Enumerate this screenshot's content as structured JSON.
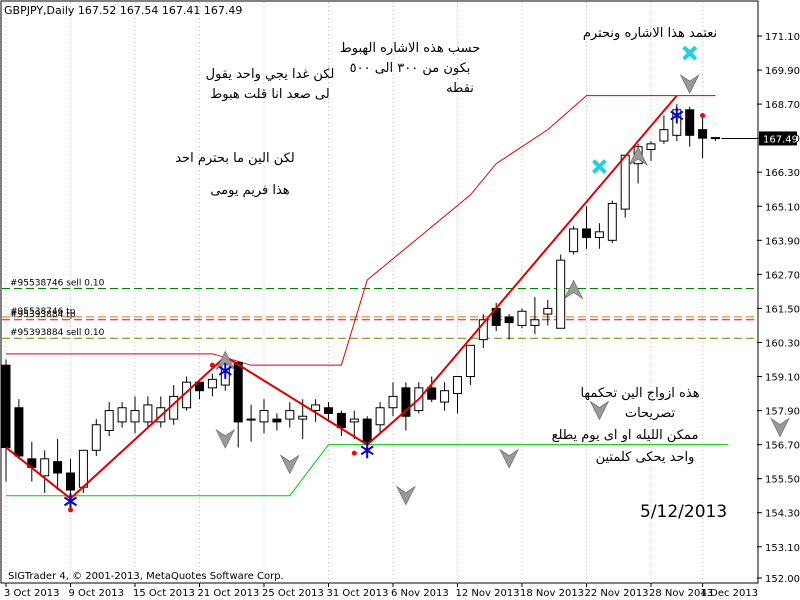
{
  "header": {
    "symbol_line": "GBPJPY,Daily  167.52 167.54 167.41 167.49",
    "copyright": "SIGTrader 4, © 2001-2013, MetaQuotes Software Corp.",
    "current_price": "167.49"
  },
  "chart_data": {
    "type": "candlestick",
    "ylim": [
      152.0,
      172.0
    ],
    "y_ticks": [
      "171.10",
      "169.90",
      "168.70",
      "167.50",
      "166.30",
      "165.10",
      "163.90",
      "162.70",
      "161.50",
      "160.30",
      "159.10",
      "157.90",
      "156.70",
      "155.50",
      "154.30",
      "153.10",
      "152.00"
    ],
    "x_ticks": [
      "3 Oct 2013",
      "9 Oct 2013",
      "15 Oct 2013",
      "21 Oct 2013",
      "25 Oct 2013",
      "31 Oct 2013",
      "6 Nov 2013",
      "12 Nov 2013",
      "18 Nov 2013",
      "22 Nov 2013",
      "28 Nov 2013",
      "4 Dec 2013"
    ],
    "candles": [
      {
        "o": 159.5,
        "h": 159.7,
        "l": 155.4,
        "c": 156.6
      },
      {
        "o": 158.0,
        "h": 158.3,
        "l": 156.2,
        "c": 156.3
      },
      {
        "o": 156.2,
        "h": 156.8,
        "l": 155.4,
        "c": 155.9
      },
      {
        "o": 155.6,
        "h": 156.5,
        "l": 155.0,
        "c": 156.2
      },
      {
        "o": 156.1,
        "h": 156.9,
        "l": 155.1,
        "c": 155.7
      },
      {
        "o": 155.7,
        "h": 156.2,
        "l": 154.8,
        "c": 155.1
      },
      {
        "o": 155.2,
        "h": 156.5,
        "l": 155.0,
        "c": 156.5
      },
      {
        "o": 156.5,
        "h": 157.6,
        "l": 156.3,
        "c": 157.4
      },
      {
        "o": 157.2,
        "h": 158.2,
        "l": 157.0,
        "c": 157.9
      },
      {
        "o": 157.5,
        "h": 158.2,
        "l": 157.3,
        "c": 158.0
      },
      {
        "o": 157.5,
        "h": 158.4,
        "l": 157.1,
        "c": 157.9
      },
      {
        "o": 157.5,
        "h": 158.4,
        "l": 157.3,
        "c": 158.1
      },
      {
        "o": 157.5,
        "h": 158.4,
        "l": 157.3,
        "c": 158.0
      },
      {
        "o": 157.6,
        "h": 158.8,
        "l": 157.4,
        "c": 158.4
      },
      {
        "o": 158.0,
        "h": 159.1,
        "l": 157.9,
        "c": 158.9
      },
      {
        "o": 158.9,
        "h": 158.9,
        "l": 158.3,
        "c": 158.6
      },
      {
        "o": 158.7,
        "h": 159.2,
        "l": 158.4,
        "c": 159.0
      },
      {
        "o": 158.8,
        "h": 159.8,
        "l": 158.6,
        "c": 159.6
      },
      {
        "o": 159.6,
        "h": 159.6,
        "l": 156.6,
        "c": 157.5
      },
      {
        "o": 157.6,
        "h": 158.1,
        "l": 156.8,
        "c": 157.6
      },
      {
        "o": 157.5,
        "h": 158.3,
        "l": 157.1,
        "c": 157.9
      },
      {
        "o": 157.6,
        "h": 157.8,
        "l": 157.2,
        "c": 157.5
      },
      {
        "o": 157.6,
        "h": 158.2,
        "l": 157.3,
        "c": 157.9
      },
      {
        "o": 157.6,
        "h": 158.3,
        "l": 156.9,
        "c": 157.7
      },
      {
        "o": 157.9,
        "h": 158.3,
        "l": 157.5,
        "c": 158.1
      },
      {
        "o": 158.0,
        "h": 158.2,
        "l": 157.5,
        "c": 157.8
      },
      {
        "o": 157.8,
        "h": 157.9,
        "l": 157.0,
        "c": 157.3
      },
      {
        "o": 157.5,
        "h": 157.9,
        "l": 156.9,
        "c": 157.6
      },
      {
        "o": 157.6,
        "h": 157.7,
        "l": 156.4,
        "c": 156.8
      },
      {
        "o": 157.4,
        "h": 158.2,
        "l": 157.1,
        "c": 158.0
      },
      {
        "o": 158.0,
        "h": 158.9,
        "l": 157.7,
        "c": 158.4
      },
      {
        "o": 158.7,
        "h": 158.9,
        "l": 157.2,
        "c": 157.7
      },
      {
        "o": 157.9,
        "h": 158.9,
        "l": 157.8,
        "c": 158.7
      },
      {
        "o": 158.7,
        "h": 159.1,
        "l": 158.2,
        "c": 158.3
      },
      {
        "o": 158.2,
        "h": 158.9,
        "l": 157.9,
        "c": 158.6
      },
      {
        "o": 158.5,
        "h": 159.1,
        "l": 157.8,
        "c": 159.1
      },
      {
        "o": 159.1,
        "h": 160.2,
        "l": 158.8,
        "c": 160.2
      },
      {
        "o": 160.4,
        "h": 161.3,
        "l": 160.1,
        "c": 161.1
      },
      {
        "o": 161.5,
        "h": 161.7,
        "l": 160.7,
        "c": 160.9
      },
      {
        "o": 161.2,
        "h": 161.3,
        "l": 160.4,
        "c": 161.0
      },
      {
        "o": 160.9,
        "h": 161.5,
        "l": 160.8,
        "c": 161.4
      },
      {
        "o": 160.9,
        "h": 161.9,
        "l": 160.6,
        "c": 161.1
      },
      {
        "o": 161.3,
        "h": 161.8,
        "l": 160.9,
        "c": 161.5
      },
      {
        "o": 160.8,
        "h": 163.4,
        "l": 160.8,
        "c": 163.2
      },
      {
        "o": 163.5,
        "h": 164.4,
        "l": 163.4,
        "c": 164.3
      },
      {
        "o": 164.3,
        "h": 165.1,
        "l": 163.6,
        "c": 164.0
      },
      {
        "o": 164.0,
        "h": 164.5,
        "l": 163.6,
        "c": 164.2
      },
      {
        "o": 163.9,
        "h": 165.3,
        "l": 163.8,
        "c": 165.2
      },
      {
        "o": 165.0,
        "h": 166.9,
        "l": 164.7,
        "c": 166.9
      },
      {
        "o": 166.6,
        "h": 167.3,
        "l": 165.9,
        "c": 167.2
      },
      {
        "o": 167.1,
        "h": 167.4,
        "l": 166.7,
        "c": 167.3
      },
      {
        "o": 167.4,
        "h": 168.3,
        "l": 167.3,
        "c": 167.8
      },
      {
        "o": 167.6,
        "h": 168.7,
        "l": 167.4,
        "c": 168.5
      },
      {
        "o": 168.5,
        "h": 168.6,
        "l": 167.2,
        "c": 167.6
      },
      {
        "o": 167.8,
        "h": 168.3,
        "l": 166.8,
        "c": 167.5
      },
      {
        "o": 167.52,
        "h": 167.54,
        "l": 167.41,
        "c": 167.49
      }
    ],
    "trend_line_points": [
      [
        0,
        156.6
      ],
      [
        5,
        154.8
      ],
      [
        17,
        159.8
      ],
      [
        28,
        156.7
      ],
      [
        32,
        158.3
      ],
      [
        52,
        169.0
      ]
    ],
    "upper_band_red": [
      [
        0,
        159.9
      ],
      [
        16,
        159.9
      ],
      [
        19,
        159.5
      ],
      [
        26,
        159.5
      ],
      [
        28,
        162.5
      ],
      [
        32,
        164.0
      ],
      [
        36,
        165.5
      ],
      [
        38,
        166.6
      ],
      [
        42,
        167.8
      ],
      [
        45,
        169.0
      ],
      [
        55,
        169.0
      ]
    ],
    "lower_band_green": [
      [
        0,
        154.9
      ],
      [
        22,
        154.9
      ],
      [
        25,
        156.7
      ],
      [
        56,
        156.7
      ]
    ],
    "horizontal_orders": [
      {
        "label": "#95538746 sell 0.10",
        "price": 162.2,
        "color": "#008000"
      },
      {
        "label": "#95538746 tp",
        "price": 161.2,
        "color": "#ff6600"
      },
      {
        "label": "#95393884 tp",
        "price": 161.1,
        "color": "#ff0000"
      },
      {
        "label": "#95393884 sell 0.10",
        "price": 160.45,
        "color": "#808000"
      }
    ],
    "arrow_up_markers": [
      [
        17,
        159.0
      ],
      [
        44,
        161.5
      ],
      [
        49,
        166.2
      ]
    ],
    "arrow_down_markers": [
      [
        17,
        157.5
      ],
      [
        22,
        156.6
      ],
      [
        31,
        155.5
      ],
      [
        53,
        170.0
      ],
      [
        39,
        156.8
      ],
      [
        46,
        158.5
      ],
      [
        60,
        157.9
      ]
    ],
    "blue_markers": [
      [
        5,
        154.7
      ],
      [
        17,
        159.3
      ],
      [
        28,
        156.5
      ],
      [
        52,
        168.3
      ]
    ],
    "red_dots": [
      [
        5,
        154.4
      ],
      [
        16,
        159.5
      ],
      [
        27,
        156.4
      ],
      [
        54,
        168.3
      ]
    ],
    "cyan_x": [
      [
        46,
        166.5
      ],
      [
        53,
        170.5
      ]
    ]
  },
  "annotations": {
    "text_1_line1": "لكن غدا يجي واحد يقول",
    "text_1_line2": "لى صعد انا قلت هبوط",
    "text_2": "لكن الين ما بحترم احد",
    "text_3": "هذا فريم يومى",
    "text_4_line1": "حسب هذه الاشاره الهبوط",
    "text_4_line2": "بكون من ٣٠٠ الى ٥٠٠",
    "text_4_line3": "نقطه",
    "text_5": "نعتمد هذا الاشاره ونحترم",
    "text_6_line1": "هذه ازواج الين تحكمها",
    "text_6_line2": "تصريحات",
    "text_6_line3": "ممكن الليله او اى يوم يطلع",
    "text_6_line4": "واحد يحكى كلمتين",
    "date_text": "5/12/2013"
  },
  "colors": {
    "trend": "#e00000",
    "upper_band": "#e00000",
    "lower_band": "#00cc00",
    "candle_up": "#ffffff",
    "candle_down": "#000000",
    "grid": "#c0c0c0",
    "price_tag_bg": "#000000"
  }
}
